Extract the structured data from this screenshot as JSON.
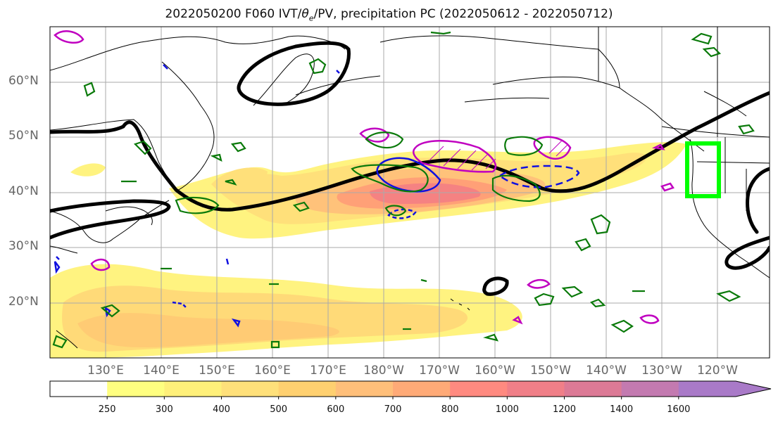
{
  "title": {
    "prefix": "2022050200 F060 IVT/",
    "theta": "θ",
    "theta_sub": "e",
    "suffix": "/PV, precipitation PC (2022050612 - 2022050712)"
  },
  "axes": {
    "lat_labels": [
      "60°N",
      "50°N",
      "40°N",
      "30°N",
      "20°N"
    ],
    "lon_labels": [
      "130°E",
      "140°E",
      "150°E",
      "160°E",
      "170°E",
      "180°W",
      "170°W",
      "160°W",
      "150°W",
      "140°W",
      "130°W",
      "120°W"
    ]
  },
  "colorbar": {
    "ticks": [
      "250",
      "300",
      "400",
      "500",
      "600",
      "700",
      "800",
      "1000",
      "1200",
      "1400",
      "1600"
    ],
    "colors": [
      "#ffff80",
      "#fff07a",
      "#ffe07a",
      "#ffd070",
      "#ffbf7a",
      "#ffaa77",
      "#ff8a80",
      "#f07f88",
      "#dc7a96",
      "#c37ab0",
      "#a97ac8"
    ],
    "extend": "max"
  },
  "chart_data": {
    "type": "heatmap",
    "field": "IVT (kg m-1 s-1) shaded",
    "contour_levels": [
      250,
      300,
      400,
      500,
      600,
      700,
      800,
      1000,
      1200,
      1400,
      1600
    ],
    "lon_range": [
      "120°E",
      "125°W"
    ],
    "lat_range": [
      "10°N",
      "70°N"
    ],
    "highlight_box": {
      "color": "#00ff00",
      "lon": [
        "124°W",
        "121°W"
      ],
      "lat": [
        "39°N",
        "49°N"
      ]
    },
    "overlays": [
      "θe contour (black)",
      "PV (blue/magenta)",
      "precipitation PC (green)"
    ]
  }
}
